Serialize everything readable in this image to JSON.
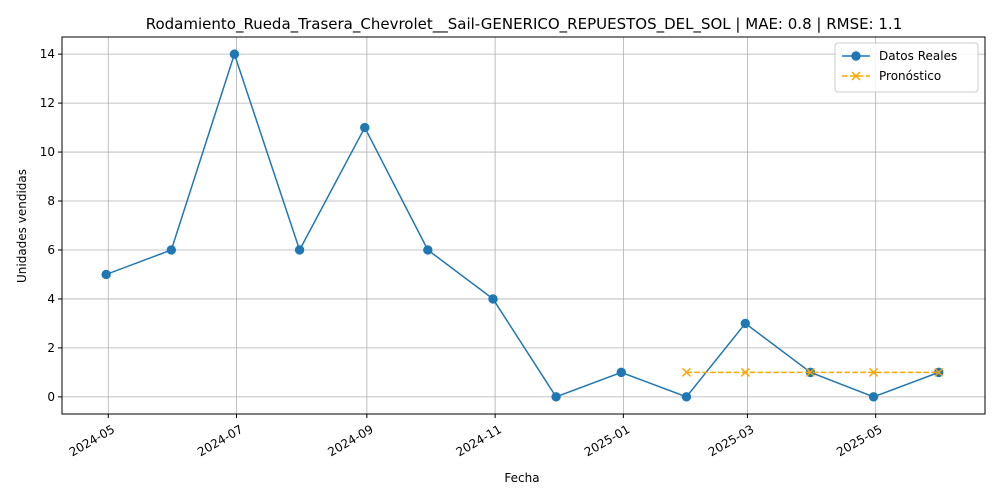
{
  "chart_data": {
    "type": "line",
    "title": "Rodamiento_Rueda_Trasera_Chevrolet__Sail-GENERICO_REPUESTOS_DEL_SOL | MAE: 0.8 | RMSE: 1.1",
    "xlabel": "Fecha",
    "ylabel": "Unidades vendidas",
    "xlim": [
      "2024-04-09",
      "2025-06-22"
    ],
    "ylim": [
      -0.7,
      14.7
    ],
    "x_ticks": [
      "2024-05",
      "2024-07",
      "2024-09",
      "2024-11",
      "2025-01",
      "2025-03",
      "2025-05"
    ],
    "y_ticks": [
      0,
      2,
      4,
      6,
      8,
      10,
      12,
      14
    ],
    "grid": true,
    "legend_position": "top-right",
    "series": [
      {
        "name": "Datos Reales",
        "color": "#1f77b4",
        "marker": "circle",
        "line": "solid",
        "x": [
          "2024-04-30",
          "2024-05-31",
          "2024-06-30",
          "2024-07-31",
          "2024-08-31",
          "2024-09-30",
          "2024-10-31",
          "2024-11-30",
          "2024-12-31",
          "2025-01-31",
          "2025-02-28",
          "2025-03-31",
          "2025-04-30",
          "2025-05-31"
        ],
        "values": [
          5,
          6,
          14,
          6,
          11,
          6,
          4,
          0,
          1,
          0,
          3,
          1,
          0,
          1
        ]
      },
      {
        "name": "Pronóstico",
        "color": "#ffa500",
        "marker": "x",
        "line": "dashed",
        "x": [
          "2025-01-31",
          "2025-02-28",
          "2025-03-31",
          "2025-04-30",
          "2025-05-31"
        ],
        "values": [
          1,
          1,
          1,
          1,
          1
        ]
      }
    ]
  }
}
